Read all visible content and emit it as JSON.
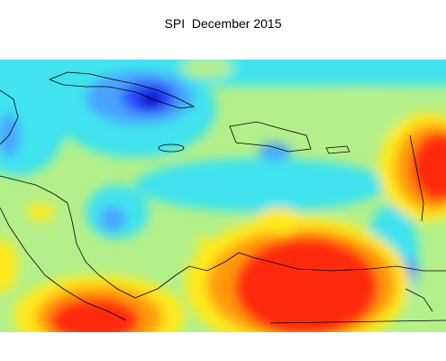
{
  "title": "SPI  December 2015"
}
